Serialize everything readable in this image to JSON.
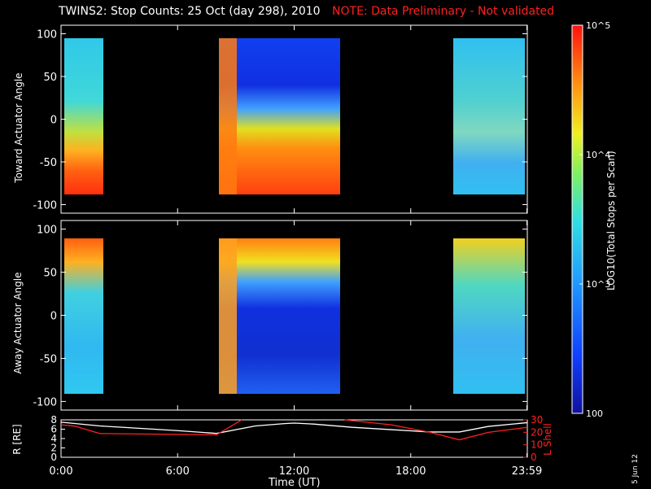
{
  "header": {
    "title": "TWINS2: Stop Counts: 25 Oct (day 298), 2010",
    "note": "NOTE: Data Preliminary - Not validated"
  },
  "footer": {
    "date_stamp": "5 Jun 12"
  },
  "colorbar": {
    "label": "LOG10(Total Stops per Scan)",
    "ticks": [
      "10^5",
      "10^4",
      "10^3",
      "100"
    ]
  },
  "colors": {
    "background": "#000000",
    "r_line": "#ffffff",
    "lshell_line": "#ff2020",
    "note_text": "#ff2020"
  },
  "chart_data": [
    {
      "type": "heatmap",
      "ylabel": "Toward Actuator Angle",
      "ylim": [
        -110,
        110
      ],
      "y_ticks": [
        -100,
        -50,
        0,
        50,
        100
      ],
      "data_y_range": [
        -88,
        90
      ],
      "x_hours_range": [
        0,
        24
      ],
      "coverage_hours": [
        [
          0,
          1.75
        ],
        [
          8.1,
          14.6
        ],
        [
          20.2,
          24
        ]
      ],
      "colorscale": "log",
      "zlim": [
        100,
        100000
      ]
    },
    {
      "type": "heatmap",
      "ylabel": "Away Actuator Angle",
      "ylim": [
        -110,
        110
      ],
      "y_ticks": [
        -100,
        -50,
        0,
        50,
        100
      ],
      "data_y_range": [
        -88,
        90
      ],
      "x_hours_range": [
        0,
        24
      ],
      "coverage_hours": [
        [
          0,
          1.75
        ],
        [
          8.1,
          14.6
        ],
        [
          20.2,
          24
        ]
      ],
      "colorscale": "log",
      "zlim": [
        100,
        100000
      ]
    },
    {
      "type": "line",
      "xlabel": "Time (UT)",
      "x_ticks": [
        "0:00",
        "6:00",
        "12:00",
        "18:00",
        "23:59"
      ],
      "x_tick_hours": [
        0,
        6,
        12,
        18,
        23.98
      ],
      "ylabel": "R [RE]",
      "ylim": [
        0,
        8
      ],
      "y_ticks": [
        0,
        2,
        4,
        6,
        8
      ],
      "y2label": "L Shell",
      "y2lim": [
        0,
        30
      ],
      "y2_ticks": [
        0,
        10,
        20,
        30
      ],
      "series": [
        {
          "name": "R [RE]",
          "axis": "left",
          "x": [
            0,
            2,
            4,
            6,
            8,
            10,
            11.5,
            12,
            13,
            15,
            17,
            19,
            20.5,
            22,
            24
          ],
          "y": [
            7.5,
            6.7,
            6.2,
            5.7,
            5.1,
            6.7,
            7.2,
            7.3,
            7.1,
            6.4,
            5.9,
            5.4,
            5.4,
            6.6,
            7.4
          ]
        },
        {
          "name": "L Shell",
          "axis": "right",
          "x": [
            0,
            0.7,
            2,
            8,
            9.3,
            null,
            14.6,
            17,
            19,
            20.5,
            22,
            24
          ],
          "y": [
            26,
            25,
            19,
            18,
            30,
            null,
            30,
            26,
            20,
            14,
            20,
            24
          ]
        }
      ]
    }
  ]
}
